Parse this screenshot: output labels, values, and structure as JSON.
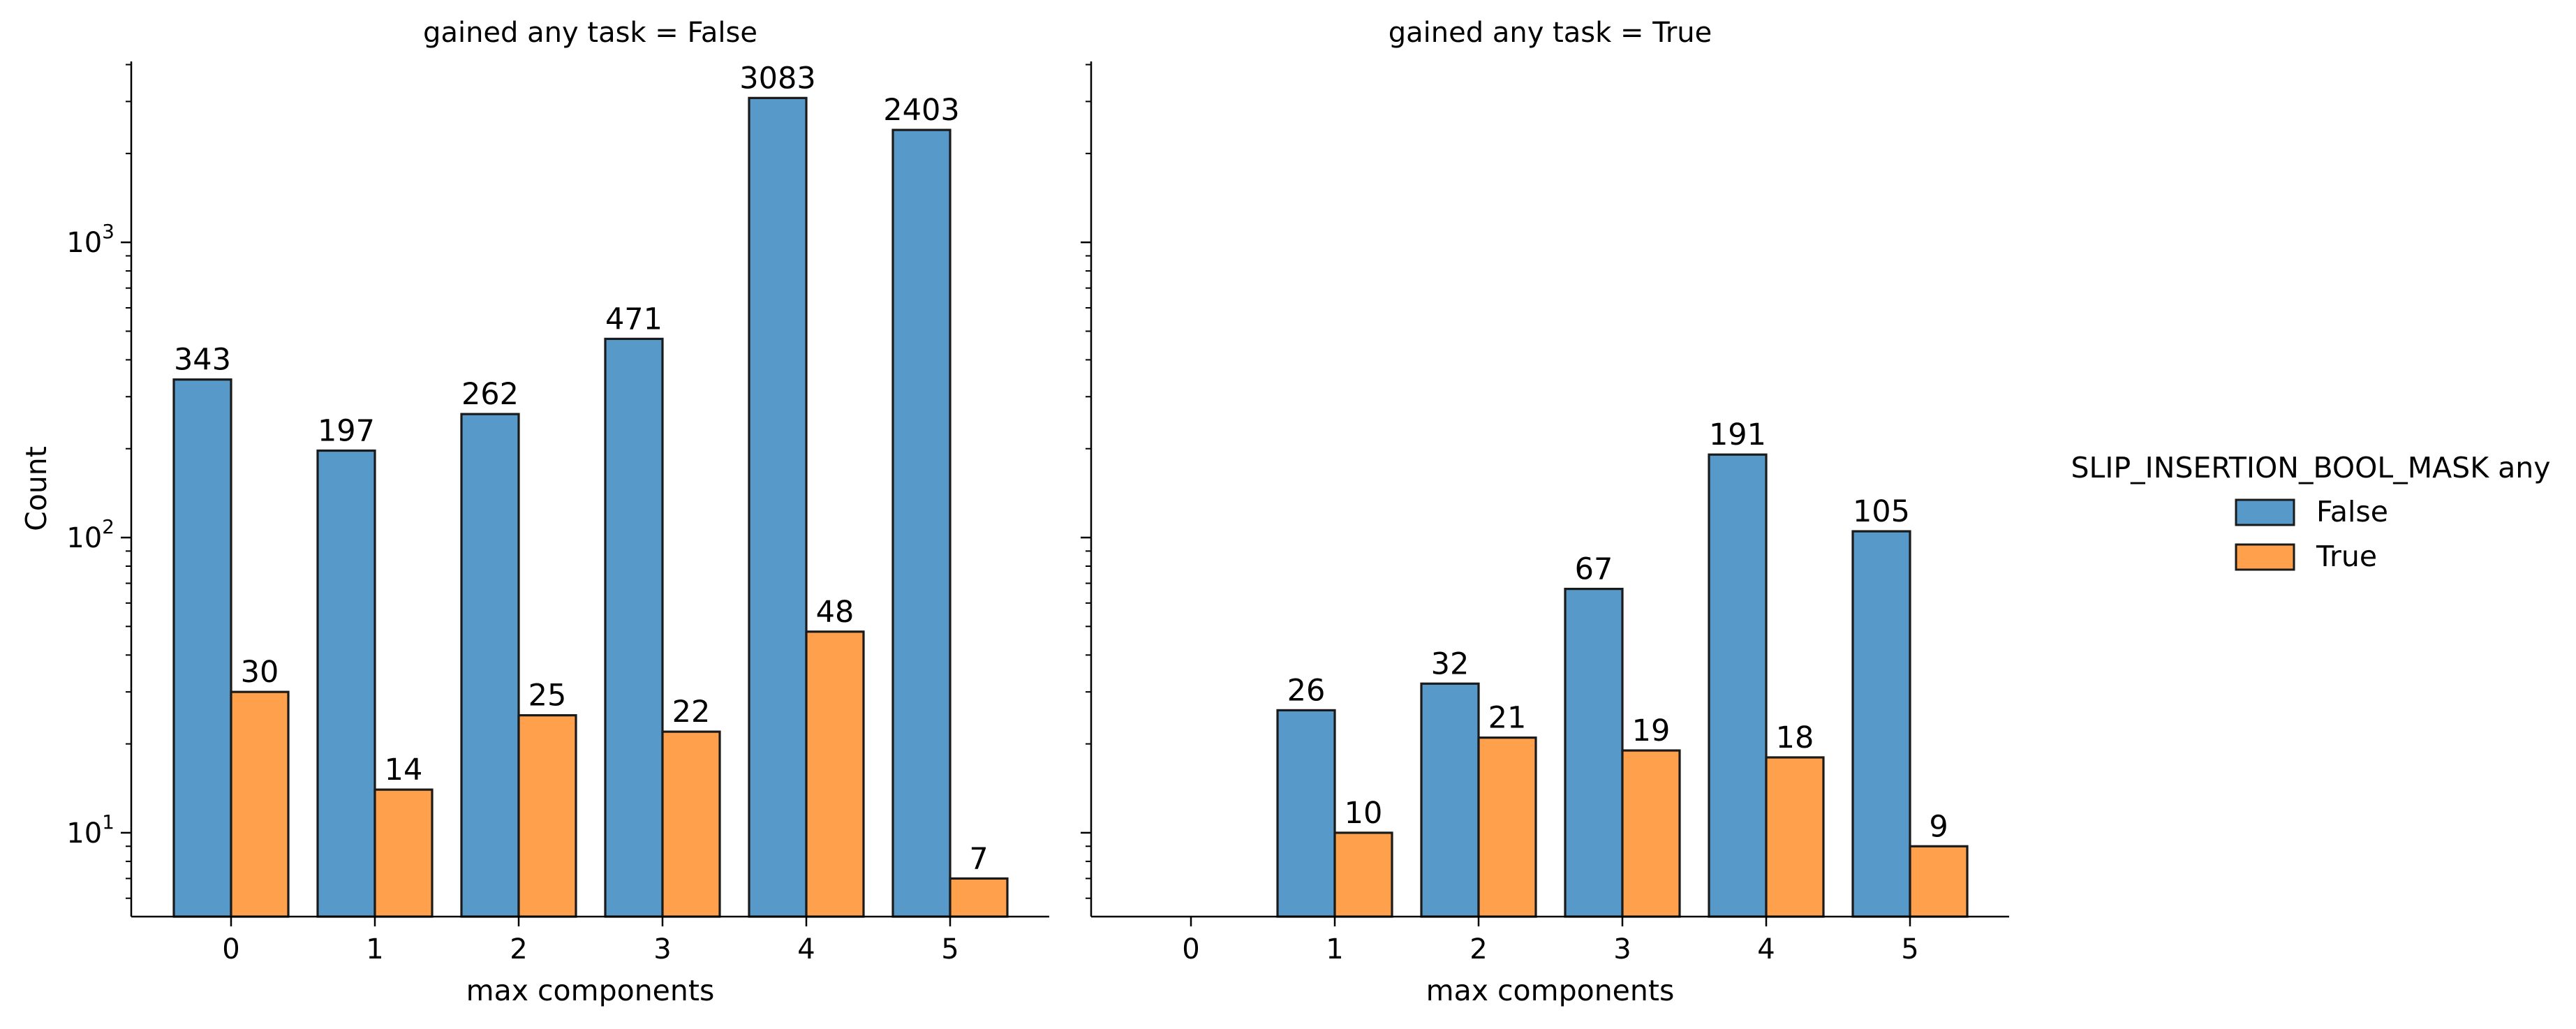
{
  "chart_data": {
    "type": "bar",
    "scale": "log",
    "ylabel": "Count",
    "y_ticks": [
      {
        "value": 10,
        "base": "10",
        "exp": "1"
      },
      {
        "value": 100,
        "base": "10",
        "exp": "2"
      },
      {
        "value": 1000,
        "base": "10",
        "exp": "3"
      }
    ],
    "legend": {
      "title": "SLIP_INSERTION_BOOL_MASK any",
      "placement": "right",
      "entries": [
        {
          "label": "False",
          "color": "#5799c9"
        },
        {
          "label": "True",
          "color": "#ffa04d"
        }
      ]
    },
    "panels": [
      {
        "title": "gained any task = False",
        "xlabel": "max components",
        "categories": [
          "0",
          "1",
          "2",
          "3",
          "4",
          "5"
        ],
        "series": [
          {
            "name": "False",
            "values": [
              343,
              197,
              262,
              471,
              3083,
              2403
            ],
            "labels": [
              "343",
              "197",
              "262",
              "471",
              "3083",
              "2403"
            ]
          },
          {
            "name": "True",
            "values": [
              30,
              14,
              25,
              22,
              48,
              7
            ],
            "labels": [
              "30",
              "14",
              "25",
              "22",
              "48",
              "7"
            ]
          }
        ]
      },
      {
        "title": "gained any task = True",
        "xlabel": "max components",
        "categories": [
          "0",
          "1",
          "2",
          "3",
          "4",
          "5"
        ],
        "series": [
          {
            "name": "False",
            "values": [
              null,
              26,
              32,
              67,
              191,
              105
            ],
            "labels": [
              "",
              "26",
              "32",
              "67",
              "191",
              "105"
            ]
          },
          {
            "name": "True",
            "values": [
              null,
              10,
              21,
              19,
              18,
              9
            ],
            "labels": [
              "",
              "10",
              "21",
              "19",
              "18",
              "9"
            ]
          }
        ]
      }
    ]
  }
}
